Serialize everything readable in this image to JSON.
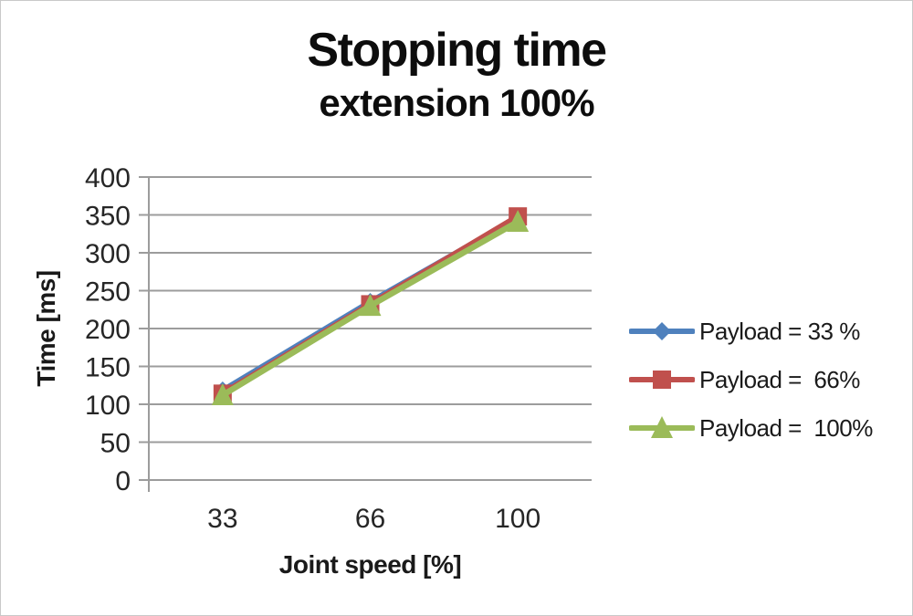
{
  "figure": {
    "background": "#ffffff",
    "border_color": "#c9c9c9"
  },
  "chart_data": {
    "type": "line",
    "title": "Stopping time",
    "subtitle": "extension 100%",
    "xlabel": "Joint speed [%]",
    "ylabel": "Time [ms]",
    "categories": [
      "33",
      "66",
      "100"
    ],
    "ylim": [
      0,
      400
    ],
    "ytick_step": 50,
    "yticks": [
      0,
      50,
      100,
      150,
      200,
      250,
      300,
      350,
      400
    ],
    "grid": true,
    "legend_position": "right",
    "grid_color": "#9c9c9c",
    "axis_color": "#9c9c9c",
    "tick_text_color": "#262626",
    "series": [
      {
        "name": "Payload = 33 %",
        "color": "#4F81BD",
        "marker": "diamond",
        "values": [
          118,
          235,
          346
        ]
      },
      {
        "name": "Payload =  66%",
        "color": "#C0504D",
        "marker": "square",
        "values": [
          114,
          232,
          348
        ]
      },
      {
        "name": "Payload =  100%",
        "color": "#9BBB59",
        "marker": "triangle",
        "values": [
          112,
          230,
          341
        ]
      }
    ]
  }
}
